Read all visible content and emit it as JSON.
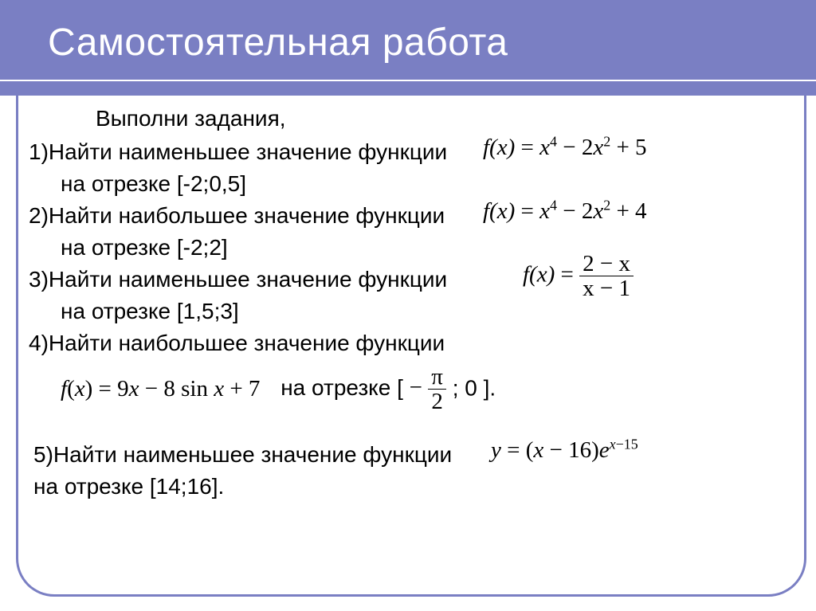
{
  "title": "Самостоятельная работа",
  "intro": "Выполни задания,",
  "task1": {
    "a": "1)Найти наименьшее значение функции",
    "b": "на отрезке [-2;0,5]",
    "fn": {
      "lhs": "f(x)",
      "eq": " = ",
      "rhs_html": "<i>x</i><sup>4</sup> − 2<i>x</i><sup>2</sup> + 5"
    }
  },
  "task2": {
    "a": "2)Найти наибольшее значение функции",
    "b": "на отрезке  [-2;2]",
    "fn": {
      "lhs": "f(x)",
      "eq": " = ",
      "rhs_html": "<i>x</i><sup>4</sup> − 2<i>x</i><sup>2</sup> + 4"
    }
  },
  "task3": {
    "a": "3)Найти наименьшее значение функции",
    "b": "на отрезке [1,5;3]",
    "fn": {
      "lhs": "f(x)",
      "eq": " = ",
      "num": "2 − x",
      "den": "x − 1"
    }
  },
  "task4": {
    "a": "4)Найти наибольшее значение функции",
    "fn_html": "<i>f</i>(<i>x</i>) = 9<i>x</i> − 8 sin <i>x</i> + 7",
    "mid": "на отрезке [",
    "lim_num": "π",
    "lim_den": "2",
    "lim_prefix": "−",
    "after": "; 0 ]."
  },
  "task5": {
    "a": "5)Найти наименьшее значение функции",
    "b": "на отрезке [14;16].",
    "fn_html": "<i>y</i> = (<i>x</i> − 16)<i>e</i><sup><i>x</i>−15</sup>"
  },
  "colors": {
    "banner": "#7a7fc3",
    "title": "#ffffff",
    "text": "#000000",
    "background": "#ffffff"
  }
}
